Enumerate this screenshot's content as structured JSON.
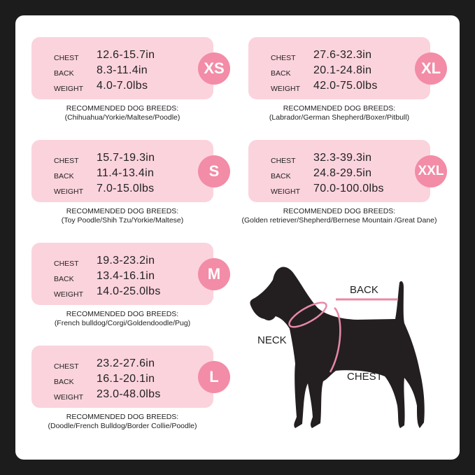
{
  "labels": {
    "chest": "CHEST",
    "back": "BACK",
    "weight": "WEIGHT",
    "recommended": "RECOMMENDED DOG BREEDS:"
  },
  "sizes": [
    {
      "size": "XS",
      "chest": "12.6-15.7in",
      "back": "8.3-11.4in",
      "weight": "4.0-7.0lbs",
      "breeds": "(Chihuahua/Yorkie/Maltese/Poodle)"
    },
    {
      "size": "S",
      "chest": "15.7-19.3in",
      "back": "11.4-13.4in",
      "weight": "7.0-15.0lbs",
      "breeds": "(Toy Poodle/Shih Tzu/Yorkie/Maltese)"
    },
    {
      "size": "M",
      "chest": "19.3-23.2in",
      "back": "13.4-16.1in",
      "weight": "14.0-25.0lbs",
      "breeds": "(French bulldog/Corgi/Goldendoodle/Pug)"
    },
    {
      "size": "L",
      "chest": "23.2-27.6in",
      "back": "16.1-20.1in",
      "weight": "23.0-48.0lbs",
      "breeds": "(Doodle/French Bulldog/Border Collie/Poodle)"
    },
    {
      "size": "XL",
      "chest": "27.6-32.3in",
      "back": "20.1-24.8in",
      "weight": "42.0-75.0lbs",
      "breeds": "(Labrador/German Shepherd/Boxer/Pitbull)"
    },
    {
      "size": "XXL",
      "chest": "32.3-39.3in",
      "back": "24.8-29.5in",
      "weight": "70.0-100.0lbs",
      "breeds": "(Golden retriever/Shepherd/Bernese Mountain /Great Dane)"
    }
  ],
  "diagram": {
    "back": "BACK",
    "neck": "NECK",
    "chest": "CHEST"
  },
  "colors": {
    "box": "#fbd3dd",
    "badge": "#f38ca7",
    "measure_line": "#e889a6"
  }
}
